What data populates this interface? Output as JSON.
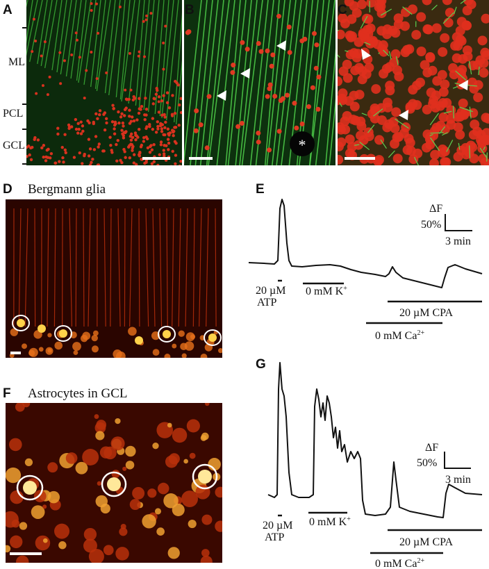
{
  "panels": {
    "A": {
      "label": "A",
      "layers": [
        "ML",
        "PCL",
        "GCL"
      ]
    },
    "B": {
      "label": "B",
      "marker": "*"
    },
    "C": {
      "label": "C"
    },
    "D": {
      "label": "D",
      "title": "Bergmann glia"
    },
    "E": {
      "label": "E",
      "scale": {
        "y_label": "ΔF",
        "y_size": "50%",
        "x_size": "3 min"
      },
      "atp": [
        "20 µM",
        "ATP"
      ],
      "potassium": {
        "text": "0 mM K",
        "sup": "+"
      },
      "cpa": "20 µM CPA",
      "calcium": {
        "text": "0 mM Ca",
        "sup": "2+"
      }
    },
    "F": {
      "label": "F",
      "title": "Astrocytes in GCL"
    },
    "G": {
      "label": "G",
      "scale": {
        "y_label": "ΔF",
        "y_size": "50%",
        "x_size": "3 min"
      },
      "atp": [
        "20 µM",
        "ATP"
      ],
      "potassium": {
        "text": "0 mM K",
        "sup": "+"
      },
      "cpa": "20 µM CPA",
      "calcium": {
        "text": "0 mM Ca",
        "sup": "2+"
      }
    }
  }
}
